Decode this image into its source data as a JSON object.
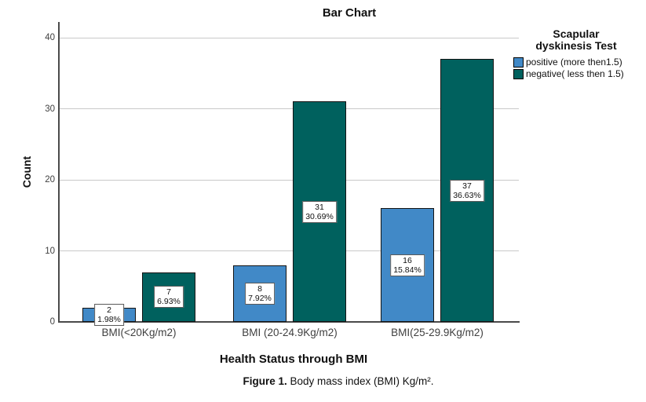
{
  "title": "Bar Chart",
  "axes": {
    "y_label": "Count",
    "x_label": "Health Status through BMI"
  },
  "legend": {
    "title_line1": "Scapular",
    "title_line2": "dyskinesis Test",
    "items": [
      {
        "label": "positive (more then1.5)",
        "color": "#4189c7"
      },
      {
        "label": "negative( less then 1.5)",
        "color": "#00615e"
      }
    ]
  },
  "caption": {
    "bold": "Figure 1.",
    "rest": " Body mass index (BMI) Kg/m²."
  },
  "chart_data": {
    "type": "bar",
    "title": "Bar Chart",
    "xlabel": "Health Status through BMI",
    "ylabel": "Count",
    "ylim": [
      0,
      42
    ],
    "yticks": [
      0,
      10,
      20,
      30,
      40
    ],
    "grid": "horizontal",
    "legend_position": "right",
    "categories": [
      "BMI(<20Kg/m2)",
      "BMI (20-24.9Kg/m2)",
      "BMI(25-29.9Kg/m2)"
    ],
    "series": [
      {
        "name": "positive (more then1.5)",
        "color": "#4189c7",
        "values": [
          2,
          8,
          16
        ],
        "percent_labels": [
          "1.98%",
          "7.92%",
          "15.84%"
        ]
      },
      {
        "name": "negative( less then 1.5)",
        "color": "#00615e",
        "values": [
          7,
          31,
          37
        ],
        "percent_labels": [
          "6.93%",
          "30.69%",
          "36.63%"
        ]
      }
    ]
  }
}
